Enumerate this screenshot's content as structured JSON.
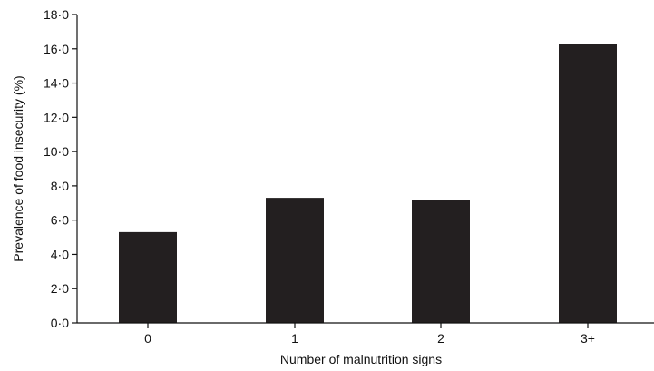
{
  "chart_data": {
    "type": "bar",
    "categories": [
      "0",
      "1",
      "2",
      "3+"
    ],
    "values": [
      5.3,
      7.3,
      7.2,
      16.3
    ],
    "xlabel": "Number of malnutrition signs",
    "ylabel": "Prevalence of food insecurity (%)",
    "ylim": [
      0,
      18
    ],
    "yticks": [
      "0·0",
      "2·0",
      "4·0",
      "6·0",
      "8·0",
      "10·0",
      "12·0",
      "14·0",
      "16·0",
      "18·0"
    ],
    "bar_color": "#231f20",
    "grid": false,
    "legend": "none"
  }
}
